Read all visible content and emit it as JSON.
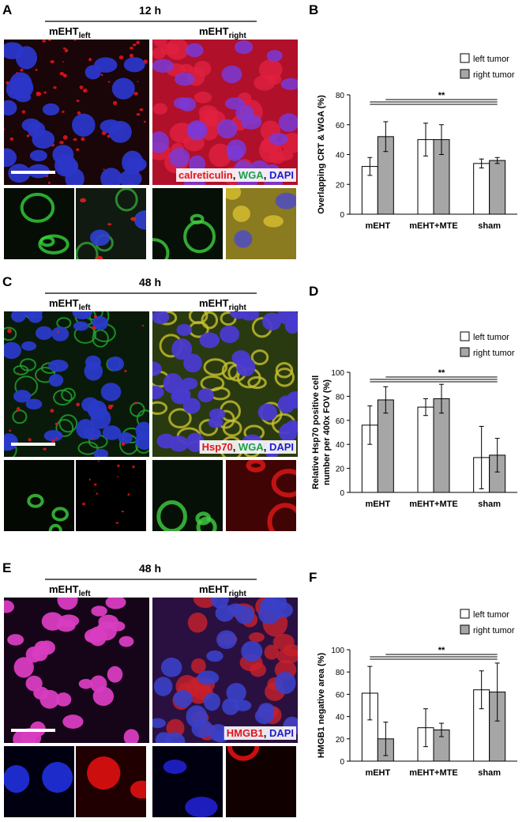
{
  "figure": {
    "rows": [
      {
        "panel": "A",
        "time": "12 h",
        "columns": [
          {
            "text": "mEHT",
            "sub": "left"
          },
          {
            "text": "mEHT",
            "sub": "right"
          }
        ],
        "stains": {
          "labels": [
            "calreticulin",
            "WGA",
            "DAPI"
          ],
          "colors": [
            "#e0141e",
            "#17a046",
            "#1c1cd0"
          ],
          "separator": ", "
        }
      },
      {
        "panel": "C",
        "time": "48 h",
        "columns": [
          {
            "text": "mEHT",
            "sub": "left"
          },
          {
            "text": "mEHT",
            "sub": "right"
          }
        ],
        "stains": {
          "labels": [
            "Hsp70",
            "WGA",
            "DAPI"
          ],
          "colors": [
            "#e0141e",
            "#17a046",
            "#1c1cd0"
          ],
          "separator": ", "
        }
      },
      {
        "panel": "E",
        "time": "48 h",
        "columns": [
          {
            "text": "mEHT",
            "sub": "left"
          },
          {
            "text": "mEHT",
            "sub": "right"
          }
        ],
        "stains": {
          "labels": [
            "HMGB1",
            "DAPI"
          ],
          "colors": [
            "#e0141e",
            "#1c1cd0"
          ],
          "separator": ", "
        }
      }
    ]
  },
  "chart_data": [
    {
      "type": "bar",
      "panel": "B",
      "y_label": [
        "Overlapping CRT & WGA (%)"
      ],
      "categories": [
        "mEHT",
        "mEHT+MTE",
        "sham"
      ],
      "ylim": [
        0,
        80
      ],
      "yticks": [
        0,
        20,
        40,
        60,
        80
      ],
      "series": [
        {
          "name": "left tumor",
          "color": "#ffffff",
          "values": [
            32,
            50,
            34
          ],
          "errors": [
            6,
            11,
            3
          ]
        },
        {
          "name": "right tumor",
          "color": "#a6a6a6",
          "values": [
            52,
            50,
            36
          ],
          "errors": [
            10,
            10,
            2
          ]
        }
      ],
      "annotation": "**"
    },
    {
      "type": "bar",
      "panel": "D",
      "y_label": [
        "Relative Hsp70 positive cell",
        "number per 400x FOV (%)"
      ],
      "categories": [
        "mEHT",
        "mEHT+MTE",
        "sham"
      ],
      "ylim": [
        0,
        100
      ],
      "yticks": [
        0,
        20,
        40,
        60,
        80,
        100
      ],
      "series": [
        {
          "name": "left tumor",
          "color": "#ffffff",
          "values": [
            56,
            71,
            29
          ],
          "errors": [
            16,
            7,
            26
          ]
        },
        {
          "name": "right tumor",
          "color": "#a6a6a6",
          "values": [
            77,
            78,
            31
          ],
          "errors": [
            11,
            12,
            14
          ]
        }
      ],
      "annotation": "**"
    },
    {
      "type": "bar",
      "panel": "F",
      "y_label": [
        "HMGB1 negative area (%)"
      ],
      "categories": [
        "mEHT",
        "mEHT+MTE",
        "sham"
      ],
      "ylim": [
        0,
        100
      ],
      "yticks": [
        0,
        20,
        40,
        60,
        80,
        100
      ],
      "series": [
        {
          "name": "left tumor",
          "color": "#ffffff",
          "values": [
            61,
            30,
            64
          ],
          "errors": [
            24,
            17,
            17
          ]
        },
        {
          "name": "right tumor",
          "color": "#a6a6a6",
          "values": [
            20,
            28,
            62
          ],
          "errors": [
            15,
            6,
            26
          ]
        }
      ],
      "annotation": "**"
    }
  ]
}
